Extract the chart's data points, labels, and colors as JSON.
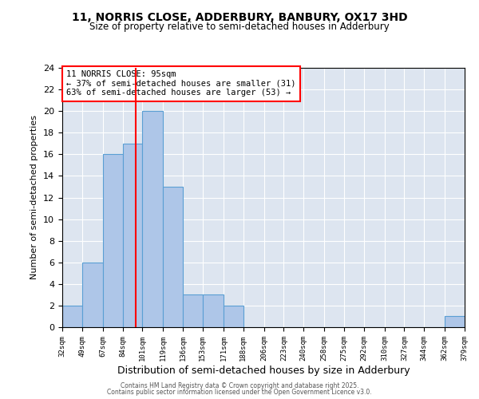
{
  "title1": "11, NORRIS CLOSE, ADDERBURY, BANBURY, OX17 3HD",
  "title2": "Size of property relative to semi-detached houses in Adderbury",
  "xlabel": "Distribution of semi-detached houses by size in Adderbury",
  "ylabel": "Number of semi-detached properties",
  "bin_edges": [
    32,
    49,
    67,
    84,
    101,
    119,
    136,
    153,
    171,
    188,
    206,
    223,
    240,
    258,
    275,
    292,
    310,
    327,
    344,
    362,
    379
  ],
  "bar_heights": [
    2,
    6,
    16,
    17,
    20,
    13,
    3,
    3,
    2,
    0,
    0,
    0,
    0,
    0,
    0,
    0,
    0,
    0,
    0,
    1
  ],
  "bar_color": "#aec6e8",
  "bar_edge_color": "#5a9fd4",
  "red_line_x": 95,
  "annotation_title": "11 NORRIS CLOSE: 95sqm",
  "annotation_line1": "← 37% of semi-detached houses are smaller (31)",
  "annotation_line2": "63% of semi-detached houses are larger (53) →",
  "ylim": [
    0,
    24
  ],
  "yticks": [
    0,
    2,
    4,
    6,
    8,
    10,
    12,
    14,
    16,
    18,
    20,
    22,
    24
  ],
  "bg_color": "#dde5f0",
  "footer1": "Contains HM Land Registry data © Crown copyright and database right 2025.",
  "footer2": "Contains public sector information licensed under the Open Government Licence v3.0."
}
